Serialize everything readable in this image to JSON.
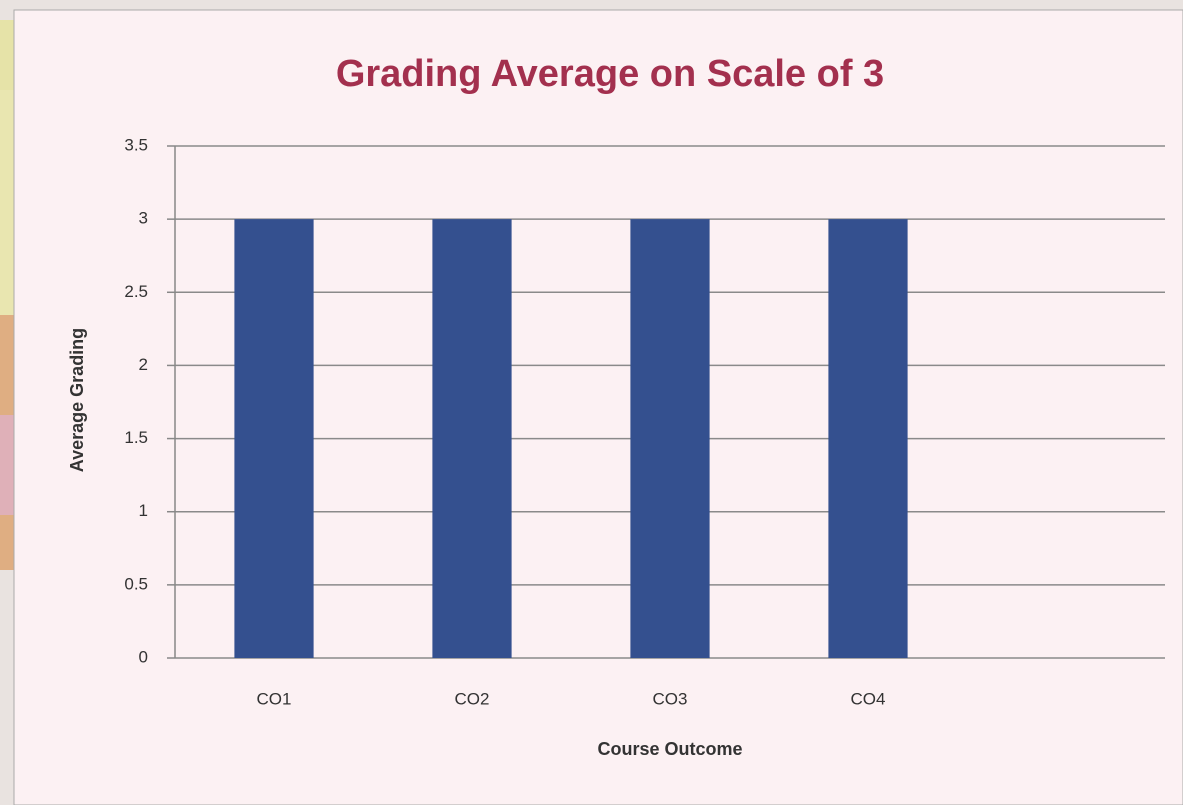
{
  "chart_data": {
    "type": "bar",
    "title": "Grading Average on Scale of 3",
    "categories": [
      "CO1",
      "CO2",
      "CO3",
      "CO4",
      null
    ],
    "values": [
      3,
      3,
      3,
      3,
      null
    ],
    "color": "#34508f",
    "ylim": [
      0,
      3.5
    ],
    "yticks": [
      0,
      0.5,
      1,
      1.5,
      2,
      2.5,
      3,
      3.5
    ],
    "grid": true,
    "x_label": "Course Outcome",
    "y_label": "Average Grading"
  }
}
